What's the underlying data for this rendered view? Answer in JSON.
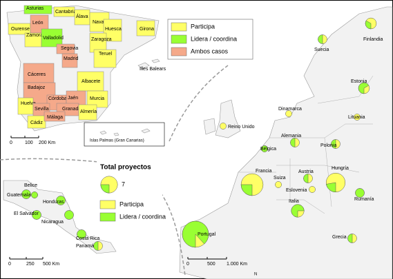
{
  "spain_inset": {
    "provinces": [
      {
        "label": "Asturias",
        "color": "#99ff33"
      },
      {
        "label": "Cantabria",
        "color": "#ffff66"
      },
      {
        "label": "Ourense",
        "color": "#ffff66"
      },
      {
        "label": "León",
        "color": "#f5a98a"
      },
      {
        "label": "Zamora",
        "color": "#ffff66"
      },
      {
        "label": "Valladolid",
        "color": "#99ff33"
      },
      {
        "label": "Álava",
        "color": "#ffff66"
      },
      {
        "label": "Navarra",
        "color": "#ffff66"
      },
      {
        "label": "Huesca",
        "color": "#ffff66"
      },
      {
        "label": "Girona",
        "color": "#ffff66"
      },
      {
        "label": "Zaragoza",
        "color": "#ffff66"
      },
      {
        "label": "Segovia",
        "color": "#f5a98a"
      },
      {
        "label": "Madrid",
        "color": "#f5a98a"
      },
      {
        "label": "Teruel",
        "color": "#ffff66"
      },
      {
        "label": "Cáceres",
        "color": "#f5a98a"
      },
      {
        "label": "Badajoz",
        "color": "#f5a98a"
      },
      {
        "label": "Albacete",
        "color": "#ffff66"
      },
      {
        "label": "Córdoba",
        "color": "#f5a98a"
      },
      {
        "label": "Jaén",
        "color": "#f5a98a"
      },
      {
        "label": "Huelva",
        "color": "#ffff66"
      },
      {
        "label": "Sevilla",
        "color": "#f5a98a"
      },
      {
        "label": "Granada",
        "color": "#f5a98a"
      },
      {
        "label": "Murcia",
        "color": "#ffff66"
      },
      {
        "label": "Almería",
        "color": "#ffff66"
      },
      {
        "label": "Cádiz",
        "color": "#ffff66"
      },
      {
        "label": "Málaga",
        "color": "#f5a98a"
      }
    ],
    "balears_label": "Illes Balears",
    "canarias_label": "Islas Palmas (Gran Canarias)",
    "scale": [
      "0",
      "100",
      "200 Km"
    ]
  },
  "spain_legend": [
    {
      "label": "Participa",
      "color": "#ffff66"
    },
    {
      "label": "Lidera / coordina",
      "color": "#99ff33"
    },
    {
      "label": "Ambos casos",
      "color": "#f5a98a"
    }
  ],
  "pie_legend": {
    "title": "Total proyectos",
    "size": 7,
    "items": [
      {
        "label": "Participa",
        "color": "#ffff66"
      },
      {
        "label": "Lidera / coordina",
        "color": "#99ff33"
      }
    ]
  },
  "europe": {
    "countries": [
      {
        "label": "Finlandia",
        "total": 3,
        "lidera": 1
      },
      {
        "label": "Suecia",
        "total": 2,
        "lidera": 1
      },
      {
        "label": "Estonia",
        "total": 3,
        "lidera": 2
      },
      {
        "label": "Dinamarca",
        "total": 1,
        "lidera": 0
      },
      {
        "label": "Lituania",
        "total": 1,
        "lidera": 0
      },
      {
        "label": "Reino Unido",
        "total": 1,
        "lidera": 0
      },
      {
        "label": "Bélgica",
        "total": 1,
        "lidera": 1
      },
      {
        "label": "Alemania",
        "total": 2,
        "lidera": 1
      },
      {
        "label": "Polonia",
        "total": 2,
        "lidera": 1
      },
      {
        "label": "Francia",
        "total": 12,
        "lidera": 3
      },
      {
        "label": "Austria",
        "total": 2,
        "lidera": 1
      },
      {
        "label": "Suiza",
        "total": 1,
        "lidera": 0
      },
      {
        "label": "Hungría",
        "total": 9,
        "lidera": 2
      },
      {
        "label": "Eslovenia",
        "total": 1,
        "lidera": 0
      },
      {
        "label": "Rumanía",
        "total": 2,
        "lidera": 2
      },
      {
        "label": "Italia",
        "total": 4,
        "lidera": 3
      },
      {
        "label": "Portugal",
        "total": 17,
        "lidera": 15
      },
      {
        "label": "Grecia",
        "total": 2,
        "lidera": 1
      }
    ],
    "scale": [
      "0",
      "500",
      "1.000 Km"
    ],
    "north": "N"
  },
  "central_america": {
    "countries": [
      {
        "label": "Belice",
        "total": 1,
        "lidera": 1
      },
      {
        "label": "Guatemala",
        "total": 2,
        "lidera": 2
      },
      {
        "label": "Honduras",
        "total": 2,
        "lidera": 2
      },
      {
        "label": "El Salvador",
        "total": 2,
        "lidera": 2
      },
      {
        "label": "Nicaragua",
        "total": 2,
        "lidera": 2
      },
      {
        "label": "Costa Rica",
        "total": 2,
        "lidera": 2
      },
      {
        "label": "Panamá",
        "total": 2,
        "lidera": 1
      }
    ],
    "scale": [
      "0",
      "250",
      "500 Km"
    ]
  }
}
